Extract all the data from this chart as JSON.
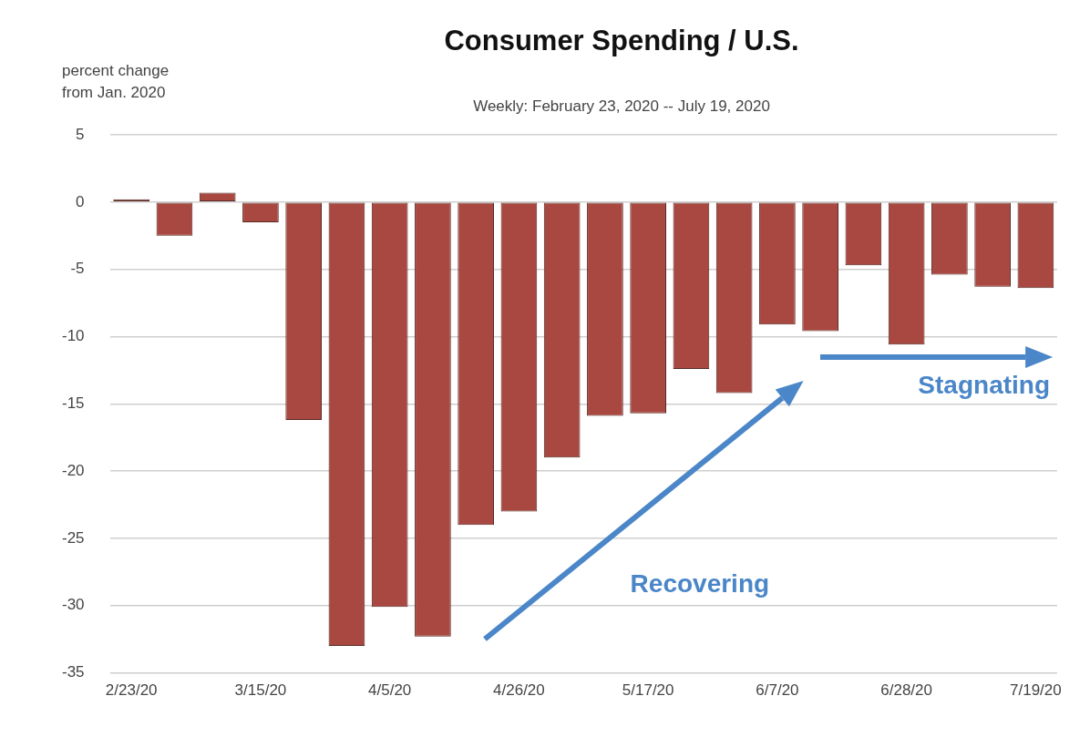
{
  "chart_data": {
    "type": "bar",
    "title": "Consumer Spending / U.S.",
    "subtitle": "Weekly: February 23, 2020 -- July 19, 2020",
    "ylabel": "percent change\nfrom Jan. 2020",
    "categories": [
      "2/23/20",
      null,
      null,
      "3/15/20",
      null,
      null,
      "4/5/20",
      null,
      null,
      "4/26/20",
      null,
      null,
      "5/17/20",
      null,
      null,
      "6/7/20",
      null,
      null,
      "6/28/20",
      null,
      null,
      "7/19/20"
    ],
    "values": [
      0.2,
      -2.5,
      0.7,
      -1.5,
      -16.2,
      -33,
      -30.1,
      -32.3,
      -24,
      -23,
      -19,
      -15.9,
      -15.7,
      -12.4,
      -14.2,
      -9.1,
      -9.6,
      -4.7,
      -10.6,
      -5.4,
      -6.3,
      -6.4
    ],
    "color": "#a84840",
    "ylim": [
      -35,
      5
    ],
    "yticks": [
      5,
      0,
      -5,
      -10,
      -15,
      -20,
      -25,
      -30,
      -35
    ],
    "grid": "y",
    "legend": false,
    "annotations": [
      "Recovering",
      "Stagnating"
    ]
  }
}
